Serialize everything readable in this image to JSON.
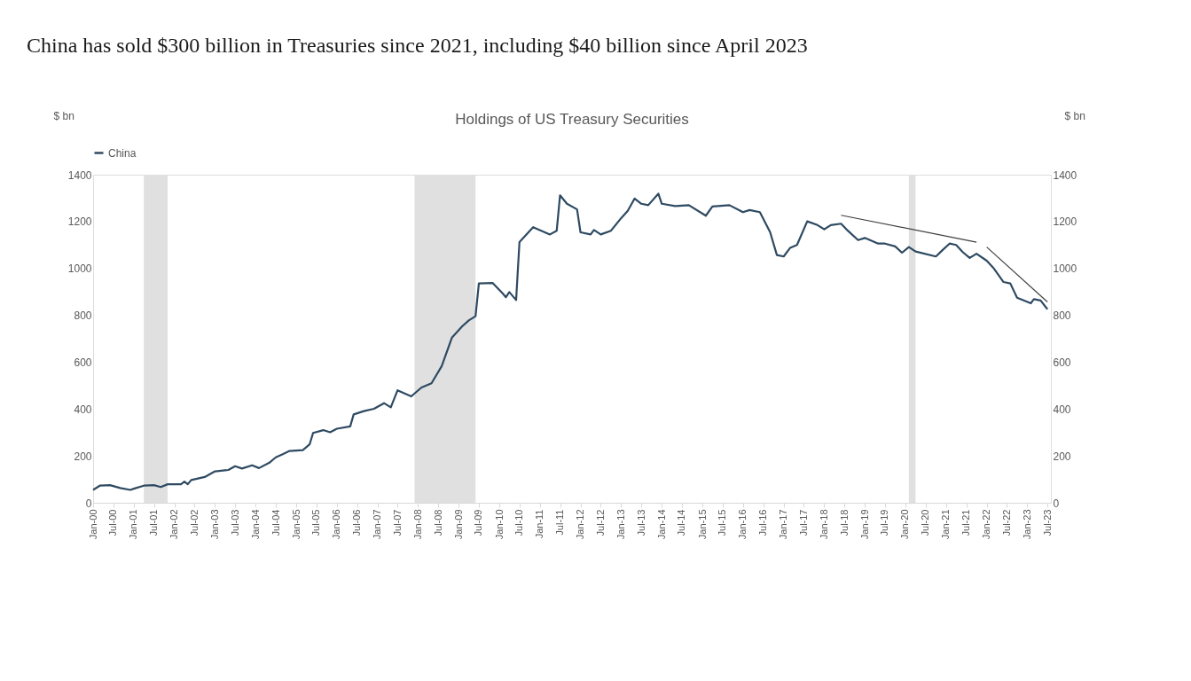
{
  "chart_data": {
    "type": "line",
    "title": "China has sold $300 billion in Treasuries since 2021, including $40 billion since April 2023",
    "subtitle": "Holdings of US Treasury Securities",
    "ylabel": "$ bn",
    "y2label": "$ bn",
    "x": [
      "2000-01",
      "2000-03",
      "2000-06",
      "2000-09",
      "2000-12",
      "2001-01",
      "2001-04",
      "2001-07",
      "2001-09",
      "2001-11",
      "2002-03",
      "2002-04",
      "2002-05",
      "2002-06",
      "2002-10",
      "2003-01",
      "2003-05",
      "2003-07",
      "2003-09",
      "2003-12",
      "2004-02",
      "2004-05",
      "2004-07",
      "2004-09",
      "2004-11",
      "2005-03",
      "2005-05",
      "2005-06",
      "2005-09",
      "2005-11",
      "2006-01",
      "2006-05",
      "2006-06",
      "2006-09",
      "2006-12",
      "2007-03",
      "2007-05",
      "2007-07",
      "2007-11",
      "2008-02",
      "2008-05",
      "2008-08",
      "2008-11",
      "2009-02",
      "2009-04",
      "2009-06",
      "2009-07",
      "2009-11",
      "2010-02",
      "2010-03",
      "2010-04",
      "2010-06",
      "2010-07",
      "2010-11",
      "2011-04",
      "2011-06",
      "2011-07",
      "2011-09",
      "2011-12",
      "2012-01",
      "2012-04",
      "2012-05",
      "2012-07",
      "2012-10",
      "2013-01",
      "2013-03",
      "2013-05",
      "2013-07",
      "2013-09",
      "2013-12",
      "2014-01",
      "2014-05",
      "2014-09",
      "2015-02",
      "2015-04",
      "2015-09",
      "2016-01",
      "2016-03",
      "2016-06",
      "2016-09",
      "2016-11",
      "2017-01",
      "2017-03",
      "2017-05",
      "2017-08",
      "2017-11",
      "2018-01",
      "2018-03",
      "2018-06",
      "2018-08",
      "2018-11",
      "2019-01",
      "2019-05",
      "2019-07",
      "2019-10",
      "2019-12",
      "2020-02",
      "2020-04",
      "2020-10",
      "2020-12",
      "2021-02",
      "2021-04",
      "2021-06",
      "2021-08",
      "2021-10",
      "2022-01",
      "2022-03",
      "2022-06",
      "2022-08",
      "2022-10",
      "2023-02",
      "2023-03",
      "2023-05",
      "2023-07"
    ],
    "series": [
      {
        "name": "China",
        "color": "#2e4a62",
        "values": [
          55,
          73,
          75,
          63,
          55,
          60,
          73,
          75,
          67,
          79,
          79,
          90,
          79,
          97,
          110,
          134,
          140,
          156,
          146,
          160,
          148,
          170,
          194,
          207,
          221,
          225,
          249,
          298,
          310,
          301,
          316,
          326,
          377,
          391,
          401,
          425,
          407,
          480,
          454,
          492,
          510,
          583,
          705,
          753,
          778,
          796,
          936,
          938,
          893,
          877,
          899,
          865,
          1112,
          1176,
          1145,
          1161,
          1312,
          1276,
          1252,
          1154,
          1145,
          1164,
          1145,
          1161,
          1215,
          1246,
          1298,
          1276,
          1270,
          1319,
          1276,
          1266,
          1270,
          1225,
          1264,
          1270,
          1240,
          1249,
          1240,
          1155,
          1057,
          1051,
          1088,
          1100,
          1201,
          1185,
          1167,
          1185,
          1191,
          1161,
          1121,
          1130,
          1106,
          1106,
          1094,
          1067,
          1091,
          1072,
          1051,
          1079,
          1106,
          1100,
          1069,
          1045,
          1063,
          1033,
          1003,
          942,
          936,
          875,
          851,
          869,
          863,
          826
        ]
      },
      {
        "type": "line",
        "color": "#404040",
        "x": [
          "2018-06",
          "2021-10"
        ],
        "values": [
          1227,
          1112
        ]
      },
      {
        "type": "line",
        "color": "#404040",
        "x": [
          "2022-01",
          "2023-07"
        ],
        "values": [
          1091,
          857
        ]
      }
    ],
    "bands": [
      {
        "axis": "x",
        "from": "2001-04",
        "to": "2001-11",
        "color": "#e0e0e0"
      },
      {
        "axis": "x",
        "from": "2007-12",
        "to": "2009-06",
        "color": "#e0e0e0"
      },
      {
        "axis": "x",
        "from": "2020-02",
        "to": "2020-04",
        "color": "#e0e0e0"
      }
    ],
    "xlim": [
      "2000-01",
      "2023-08"
    ],
    "xticks": [
      {
        "value": "2000-01",
        "label": "Jan-00"
      },
      {
        "value": "2000-07",
        "label": "Jul-00"
      },
      {
        "value": "2001-01",
        "label": "Jan-01"
      },
      {
        "value": "2001-07",
        "label": "Jul-01"
      },
      {
        "value": "2002-01",
        "label": "Jan-02"
      },
      {
        "value": "2002-07",
        "label": "Jul-02"
      },
      {
        "value": "2003-01",
        "label": "Jan-03"
      },
      {
        "value": "2003-07",
        "label": "Jul-03"
      },
      {
        "value": "2004-01",
        "label": "Jan-04"
      },
      {
        "value": "2004-07",
        "label": "Jul-04"
      },
      {
        "value": "2005-01",
        "label": "Jan-05"
      },
      {
        "value": "2005-07",
        "label": "Jul-05"
      },
      {
        "value": "2006-01",
        "label": "Jan-06"
      },
      {
        "value": "2006-07",
        "label": "Jul-06"
      },
      {
        "value": "2007-01",
        "label": "Jan-07"
      },
      {
        "value": "2007-07",
        "label": "Jul-07"
      },
      {
        "value": "2008-01",
        "label": "Jan-08"
      },
      {
        "value": "2008-07",
        "label": "Jul-08"
      },
      {
        "value": "2009-01",
        "label": "Jan-09"
      },
      {
        "value": "2009-07",
        "label": "Jul-09"
      },
      {
        "value": "2010-01",
        "label": "Jan-10"
      },
      {
        "value": "2010-07",
        "label": "Jul-10"
      },
      {
        "value": "2011-01",
        "label": "Jan-11"
      },
      {
        "value": "2011-07",
        "label": "Jul-11"
      },
      {
        "value": "2012-01",
        "label": "Jan-12"
      },
      {
        "value": "2012-07",
        "label": "Jul-12"
      },
      {
        "value": "2013-01",
        "label": "Jan-13"
      },
      {
        "value": "2013-07",
        "label": "Jul-13"
      },
      {
        "value": "2014-01",
        "label": "Jan-14"
      },
      {
        "value": "2014-07",
        "label": "Jul-14"
      },
      {
        "value": "2015-01",
        "label": "Jan-15"
      },
      {
        "value": "2015-07",
        "label": "Jul-15"
      },
      {
        "value": "2016-01",
        "label": "Jan-16"
      },
      {
        "value": "2016-07",
        "label": "Jul-16"
      },
      {
        "value": "2017-01",
        "label": "Jan-17"
      },
      {
        "value": "2017-07",
        "label": "Jul-17"
      },
      {
        "value": "2018-01",
        "label": "Jan-18"
      },
      {
        "value": "2018-07",
        "label": "Jul-18"
      },
      {
        "value": "2019-01",
        "label": "Jan-19"
      },
      {
        "value": "2019-07",
        "label": "Jul-19"
      },
      {
        "value": "2020-01",
        "label": "Jan-20"
      },
      {
        "value": "2020-07",
        "label": "Jul-20"
      },
      {
        "value": "2021-01",
        "label": "Jan-21"
      },
      {
        "value": "2021-07",
        "label": "Jul-21"
      },
      {
        "value": "2022-01",
        "label": "Jan-22"
      },
      {
        "value": "2022-07",
        "label": "Jul-22"
      },
      {
        "value": "2023-01",
        "label": "Jan-23"
      },
      {
        "value": "2023-07",
        "label": "Jul-23"
      }
    ],
    "ylim": [
      0,
      1400
    ],
    "yticks": [
      0,
      200,
      400,
      600,
      800,
      1000,
      1200,
      1400
    ],
    "y2lim": [
      0,
      1400
    ],
    "y2ticks": [
      0,
      200,
      400,
      600,
      800,
      1000,
      1200,
      1400
    ],
    "grid": false,
    "legend": "top",
    "marker": "none",
    "line_style": "solid"
  }
}
